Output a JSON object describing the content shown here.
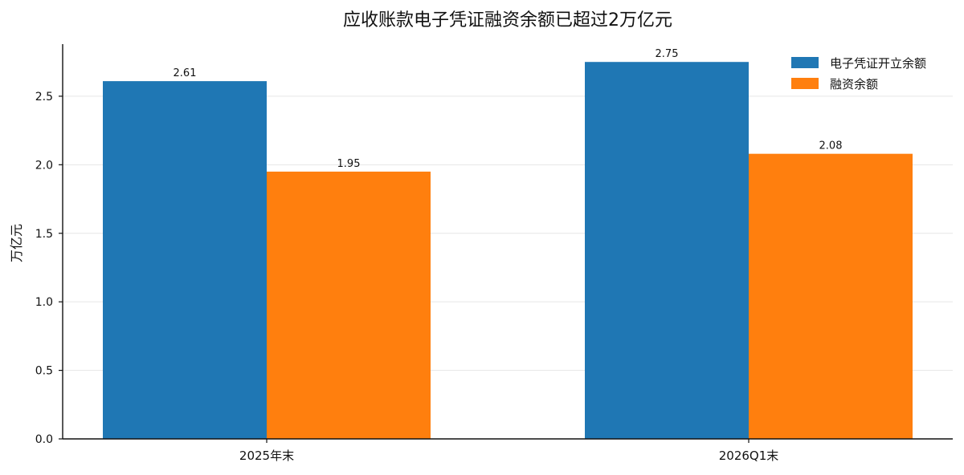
{
  "chart_data": {
    "type": "bar",
    "title": "应收账款电子凭证融资余额已超过2万亿元",
    "xlabel": "",
    "ylabel": "万亿元",
    "categories": [
      "2025年末",
      "2026Q1末"
    ],
    "series": [
      {
        "name": "电子凭证开立余额",
        "color": "#1f77b4",
        "values": [
          2.61,
          2.75
        ],
        "labels": [
          "2.61",
          "2.75"
        ]
      },
      {
        "name": "融资余额",
        "color": "#ff7f0e",
        "values": [
          1.95,
          2.08
        ],
        "labels": [
          "1.95",
          "2.08"
        ]
      }
    ],
    "ylim": [
      0,
      2.88
    ],
    "yticks": [
      0.0,
      0.5,
      1.0,
      1.5,
      2.0,
      2.5
    ],
    "ytick_labels": [
      "0.0",
      "0.5",
      "1.0",
      "1.5",
      "2.0",
      "2.5"
    ],
    "grid": "horizontal",
    "legend_position": "top-right"
  }
}
